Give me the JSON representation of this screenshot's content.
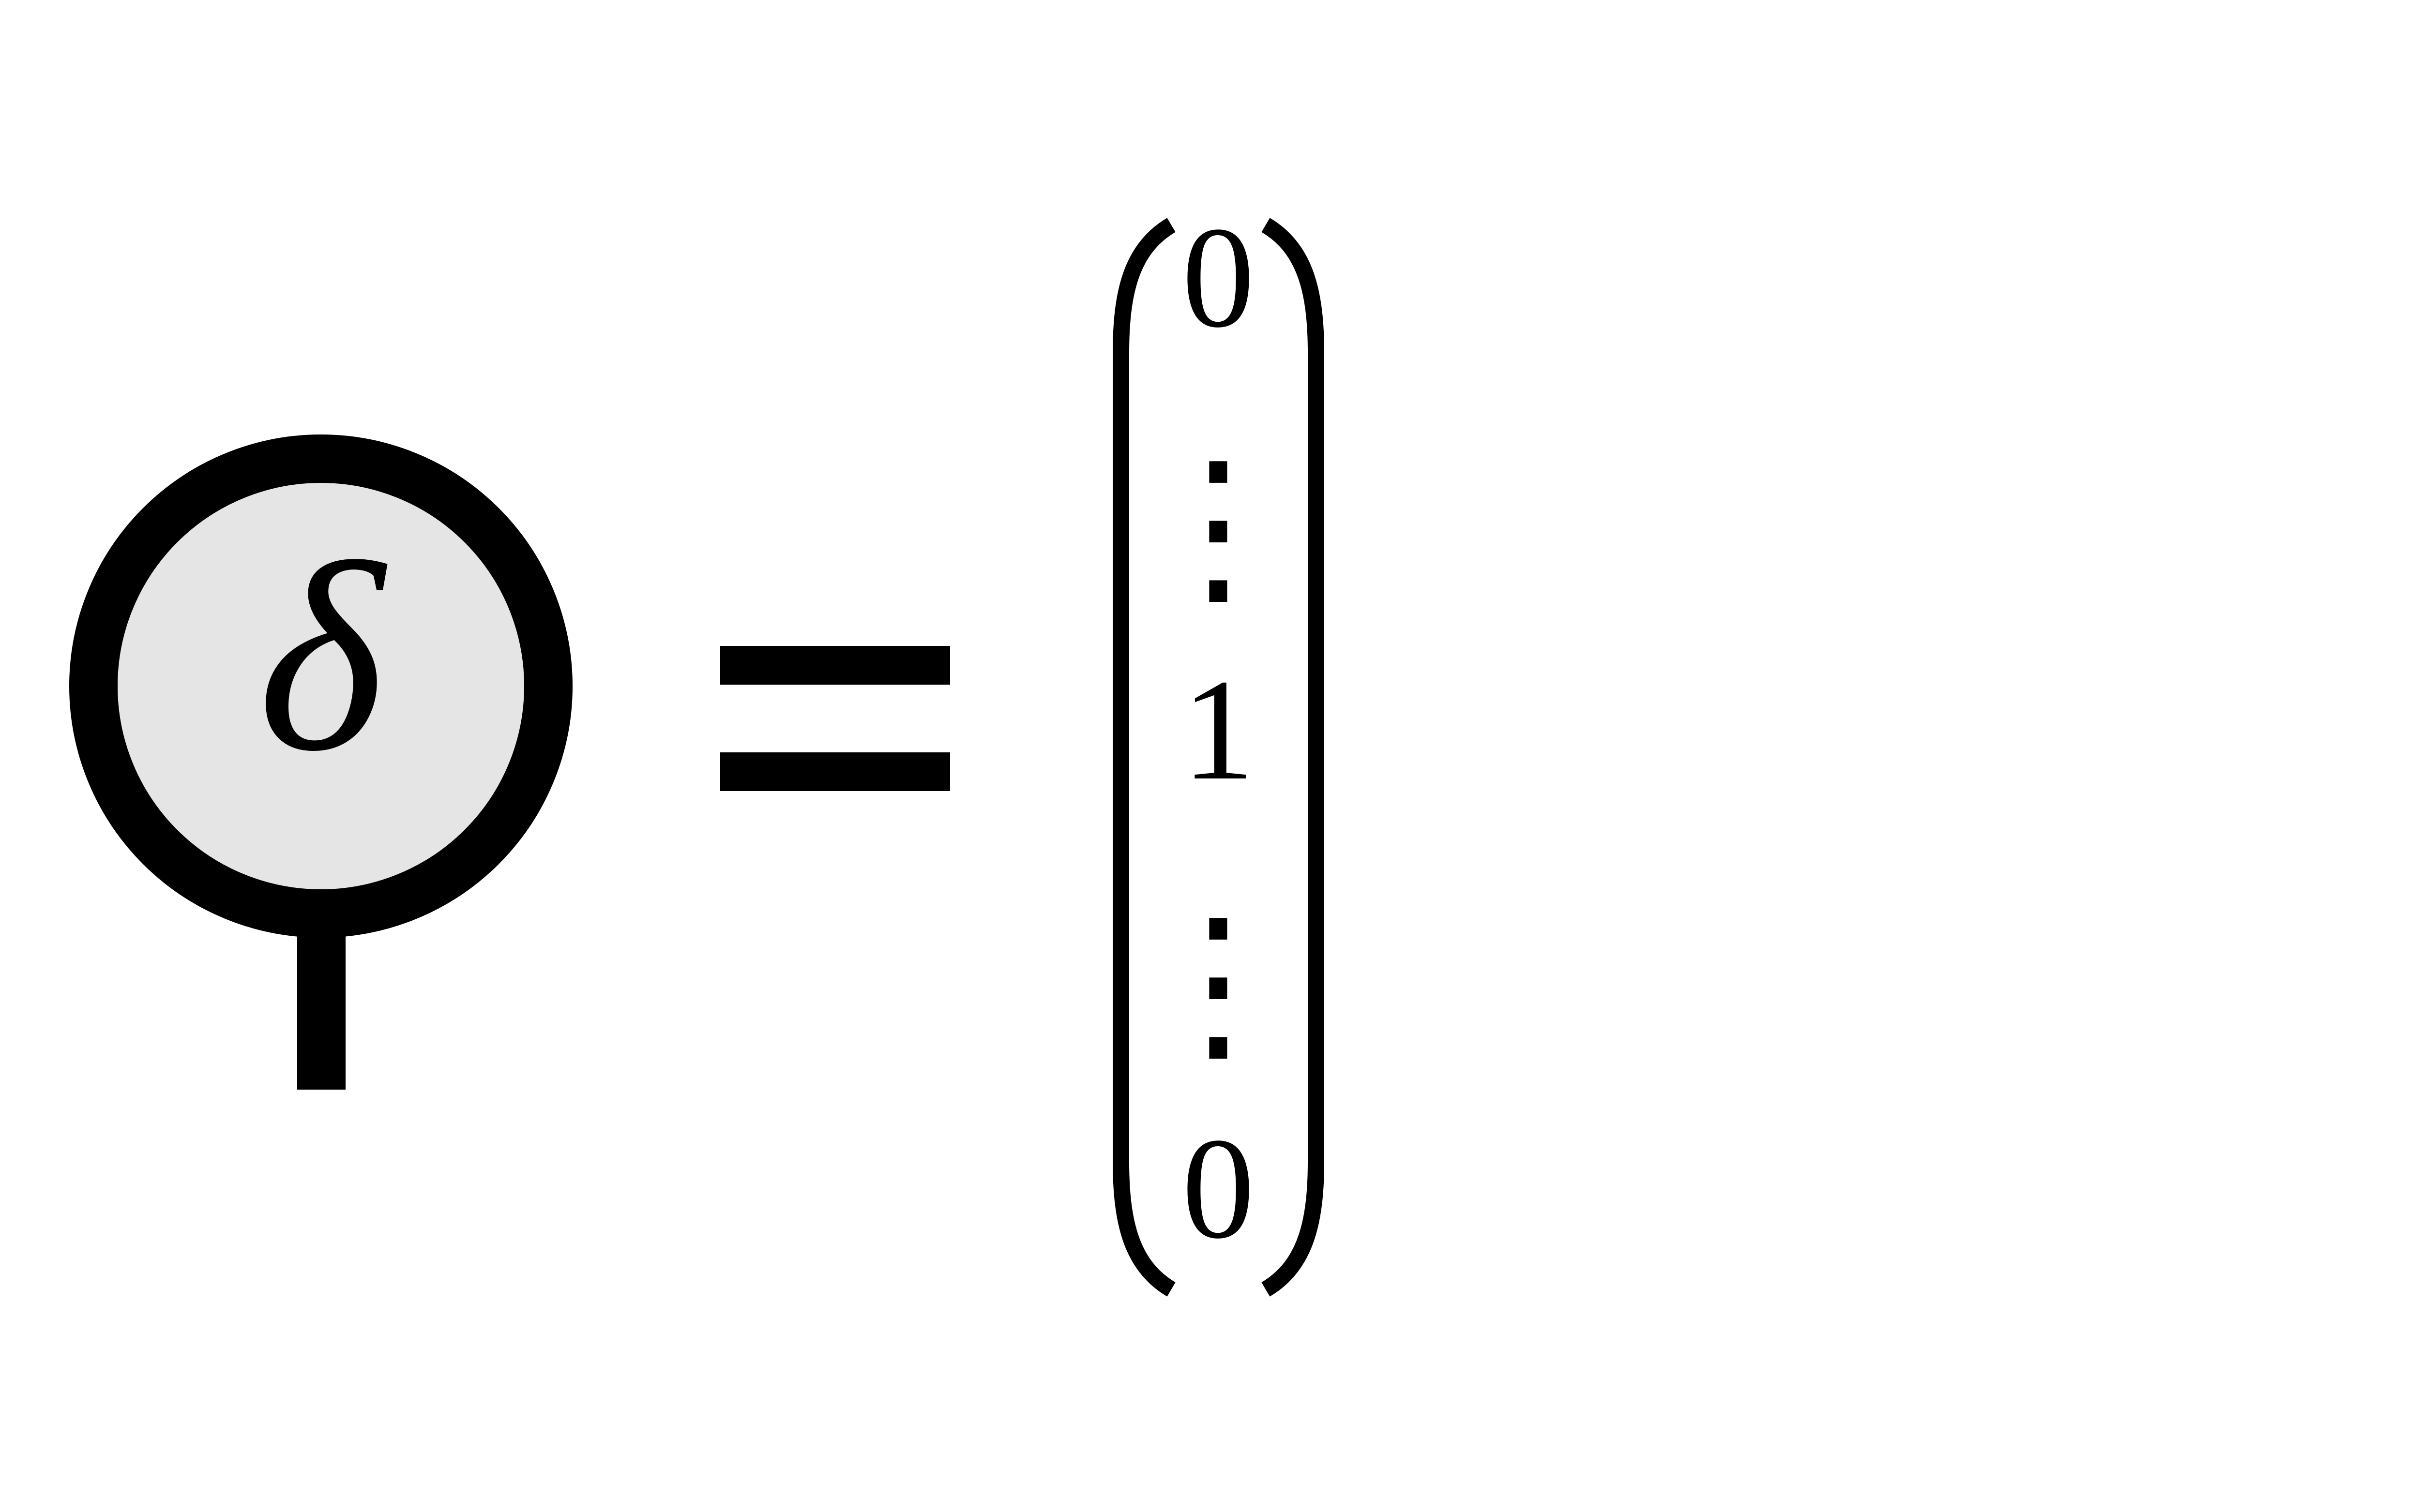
{
  "diagram": {
    "node": {
      "symbol": "δ",
      "fill_color": "#e5e5e5",
      "stroke_color": "#000000"
    },
    "operator": "=",
    "vector": {
      "entries": [
        "0",
        "⋮",
        "1",
        "⋮",
        "0"
      ]
    }
  }
}
